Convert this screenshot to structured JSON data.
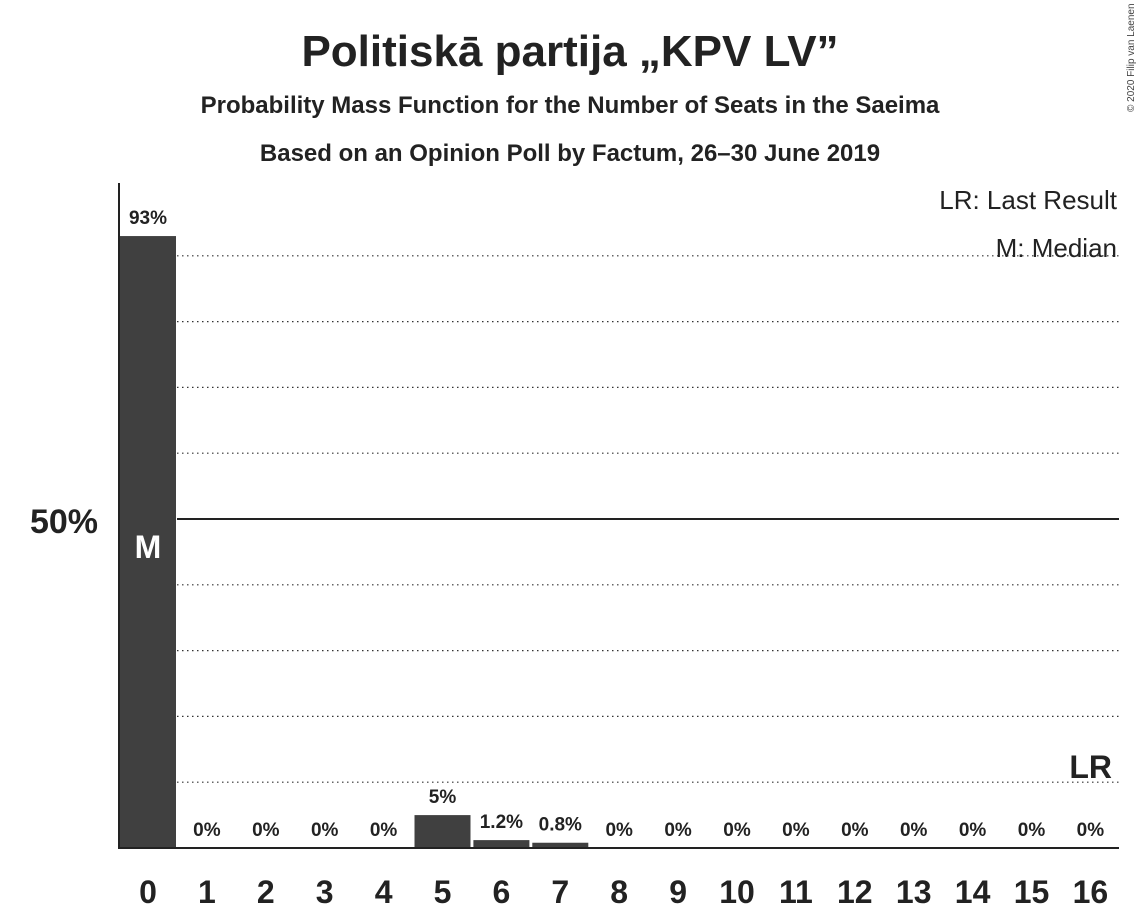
{
  "chart_data": {
    "type": "bar",
    "title": "Politiskā partija „KPV LV”",
    "subtitle": "Probability Mass Function for the Number of Seats in the Saeima",
    "subtitle2": "Based on an Opinion Poll by Factum, 26–30 June 2019",
    "copyright": "© 2020 Filip van Laenen",
    "categories": [
      "0",
      "1",
      "2",
      "3",
      "4",
      "5",
      "6",
      "7",
      "8",
      "9",
      "10",
      "11",
      "12",
      "13",
      "14",
      "15",
      "16"
    ],
    "values": [
      93,
      0,
      0,
      0,
      0,
      5,
      1.2,
      0.8,
      0,
      0,
      0,
      0,
      0,
      0,
      0,
      0,
      0
    ],
    "value_labels": [
      "93%",
      "0%",
      "0%",
      "0%",
      "0%",
      "5%",
      "1.2%",
      "0.8%",
      "0%",
      "0%",
      "0%",
      "0%",
      "0%",
      "0%",
      "0%",
      "0%",
      "0%"
    ],
    "ylim": [
      0,
      100
    ],
    "y_tick_label": "50%",
    "y_tick_value": 50,
    "gridlines": [
      10,
      20,
      30,
      40,
      60,
      70,
      80,
      90
    ],
    "median": {
      "seat": "0",
      "label": "M"
    },
    "last_result": {
      "seat": "16",
      "label": "LR",
      "value": 10
    },
    "legend": {
      "placement": "top-right",
      "lines": [
        "LR: Last Result",
        "M: Median"
      ]
    },
    "colors": {
      "bar": "#404040",
      "text": "#222222",
      "median_text": "#ffffff"
    }
  }
}
